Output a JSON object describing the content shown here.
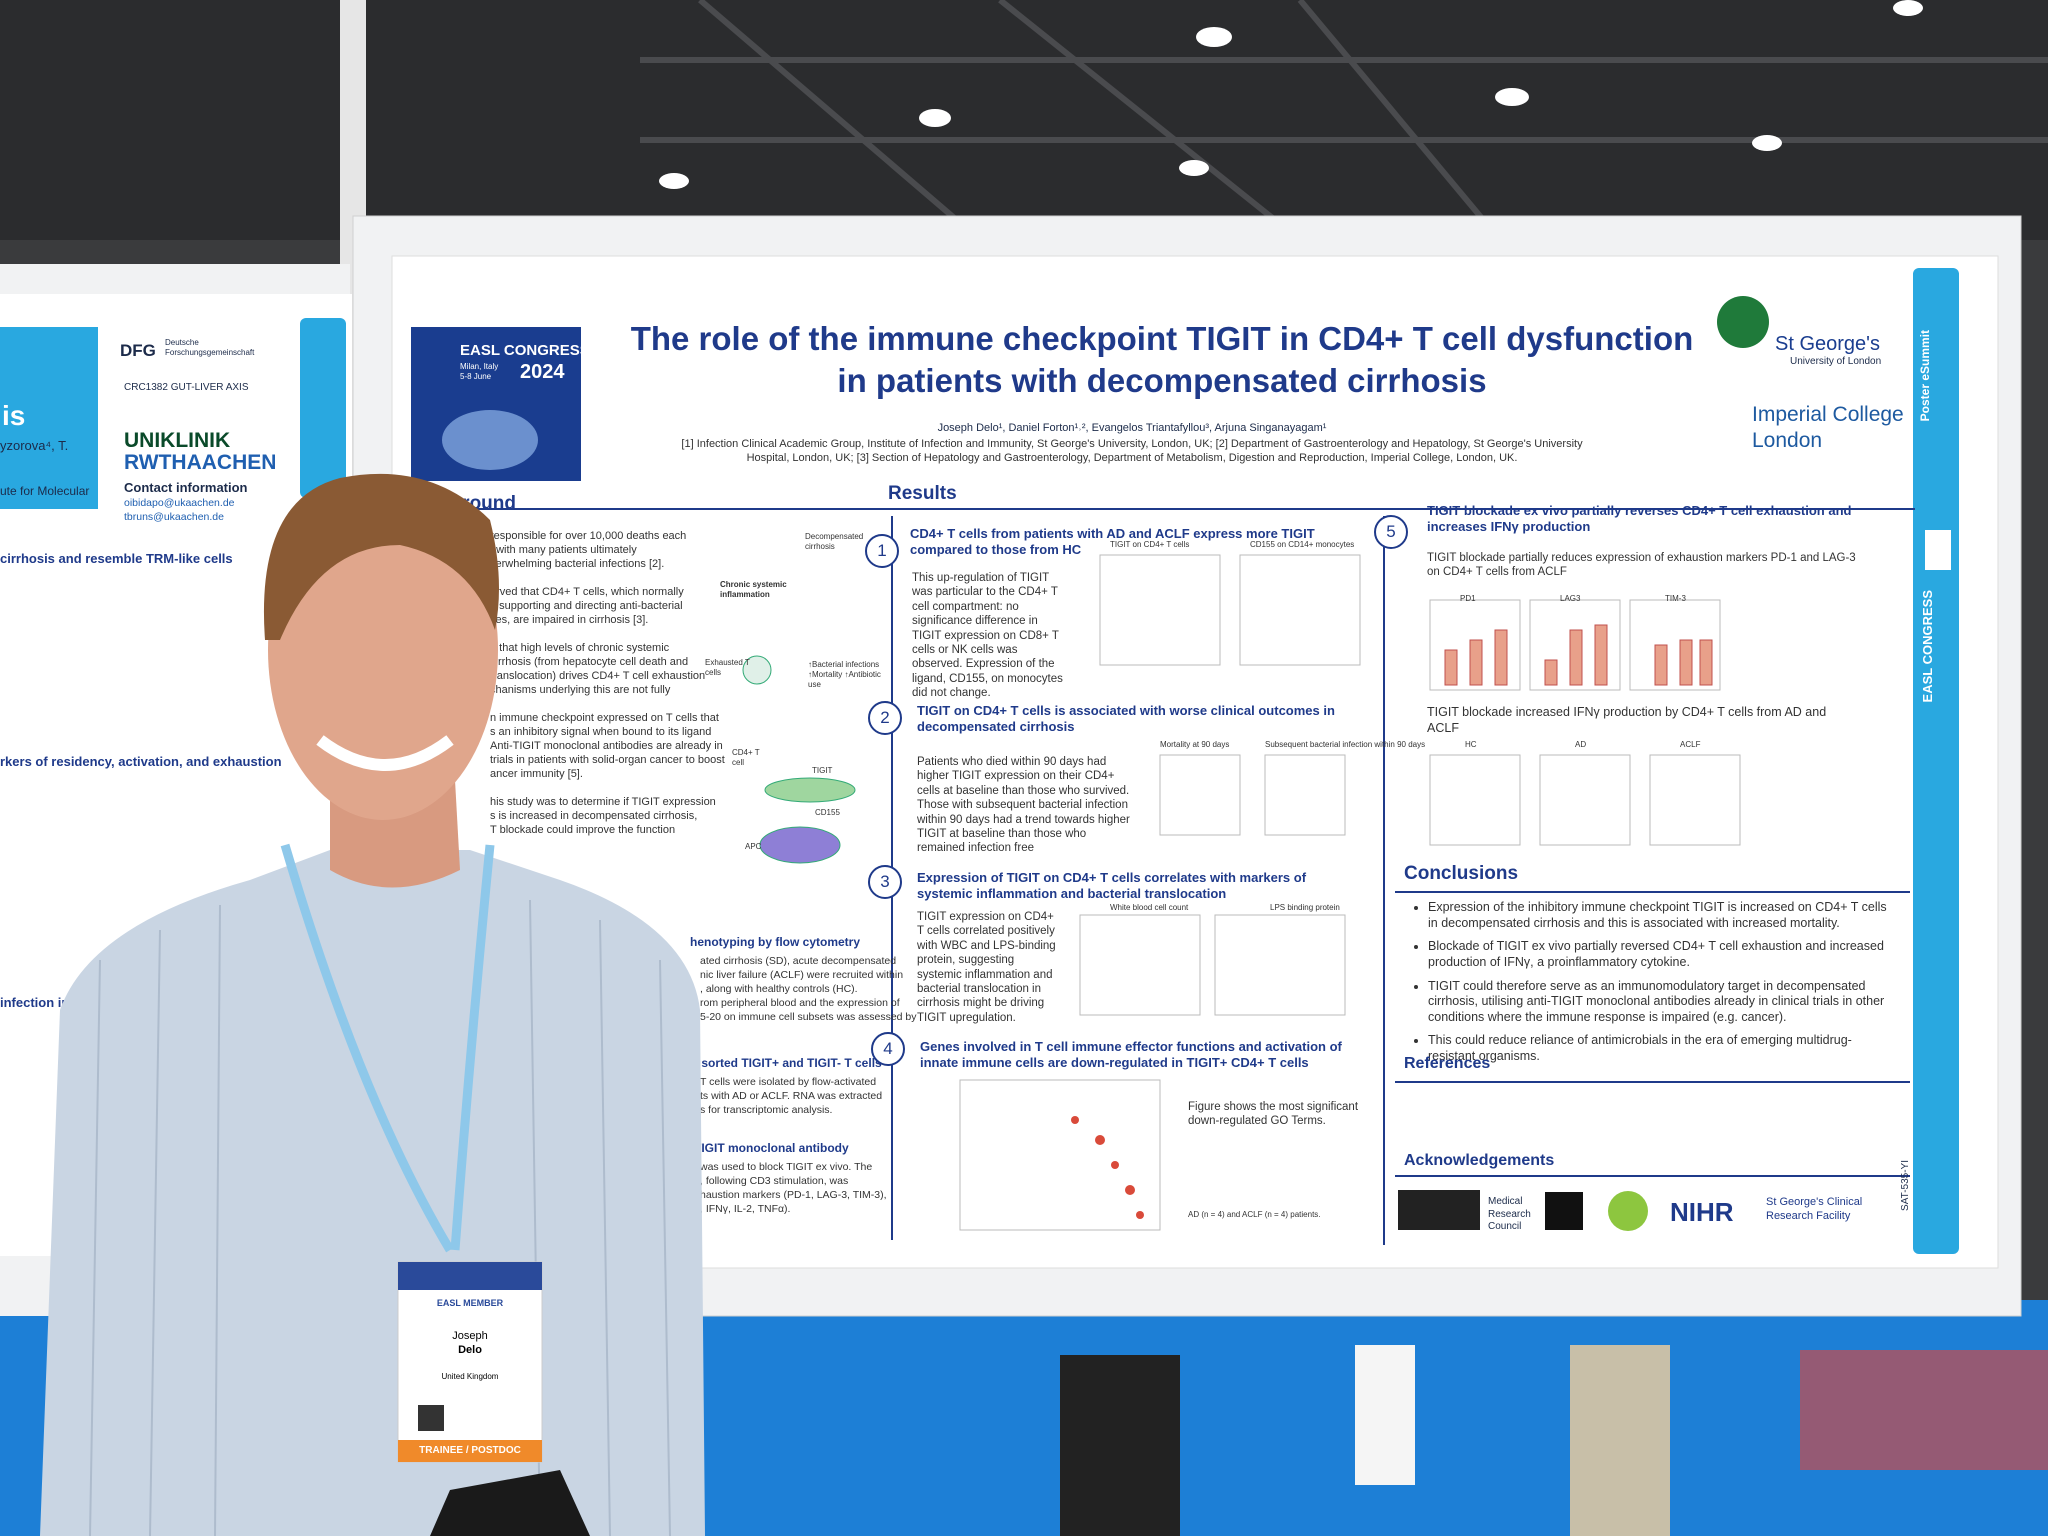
{
  "left_poster": {
    "title_fragment": "is",
    "authors_fragment": "yzorova⁴, T.",
    "institute_fragment": "ute for Molecular",
    "dfg": "DFG",
    "dfg_name": "Deutsche Forschungsgemeinschaft",
    "consortium": "CRC1382 GUT-LIVER AXIS",
    "hospital": [
      "UNIKLINIK",
      "RWTHAACHEN"
    ],
    "contact_heading": "Contact information",
    "emails": [
      "oibidapo@ukaachen.de",
      "tbruns@ukaachen.de"
    ],
    "headings": [
      "cirrhosis and resemble TRM-like cells",
      "rkers of residency, activation, and exhaustion",
      "infection impri"
    ]
  },
  "poster": {
    "congress": {
      "name": "EASL CONGRESS",
      "place": "Milan, Italy",
      "dates": "5-8 June",
      "year": "2024"
    },
    "title": [
      "The role of the immune checkpoint TIGIT in CD4+ T cell dysfunction",
      "in patients with decompensated cirrhosis"
    ],
    "logos": {
      "st_georges": "St George's",
      "st_georges_sub": "University of London",
      "imperial": "Imperial College London"
    },
    "authors": "Joseph Delo¹, Daniel Forton¹˒², Evangelos Triantafyllou³, Arjuna Singanayagam¹",
    "affiliations": "[1] Infection Clinical Academic Group, Institute of Infection and Immunity, St George's University, London, UK; [2] Department of Gastroenterology and Hepatology, St George's University Hospital, London, UK; [3] Section of Hepatology and Gastroenterology, Department of Metabolism, Digestion and Reproduction, Imperial College, London, UK.",
    "background": {
      "heading": "kground",
      "lines": [
        "responsible for over 10,000 deaths each",
        ", with many patients ultimately",
        "verwhelming bacterial infections [2].",
        "",
        "erved that CD4+ T cells, which normally",
        "n supporting and directing anti-bacterial",
        "ses, are impaired in cirrhosis [3].",
        "",
        "d that high levels of chronic systemic",
        "cirrhosis (from hepatocyte cell death and",
        "translocation) drives CD4+ T cell exhaustion",
        "chanisms underlying this are not fully",
        "",
        "n immune checkpoint expressed on T cells that",
        "s an inhibitory signal when bound to its ligand",
        "Anti-TIGIT monoclonal antibodies are already in",
        "trials in patients with solid-organ cancer to boost",
        "ancer immunity [5].",
        "",
        "his study was to determine if TIGIT expression",
        "s is increased in decompensated cirrhosis,",
        "T blockade could improve the function"
      ]
    },
    "diagram": [
      "Decompensated cirrhosis",
      "Chronic systemic inflammation",
      "Exhausted T cells",
      "↑Bacterial infections ↑Mortality ↑Antibiotic use",
      "CD4+ T cell",
      "TIGIT",
      "CD155",
      "APC"
    ],
    "methods": [
      {
        "heading": "henotyping by flow cytometry",
        "lines": [
          "ated cirrhosis (SD), acute decompensated",
          "nic liver failure (ACLF) were recruited within",
          ", along with healthy controls (HC).",
          "rom peripheral blood and the expression of",
          "5-20 on immune cell subsets was assessed by"
        ]
      },
      {
        "heading": "S sorted TIGIT+ and TIGIT- T cells",
        "lines": [
          "T cells were isolated by flow-activated",
          "ts with AD or ACLF. RNA was extracted",
          "s for transcriptomic analysis."
        ]
      },
      {
        "heading": "-TIGIT monoclonal antibody",
        "lines": [
          "was used to block TIGIT ex vivo. The",
          ", following CD3 stimulation, was",
          "haustion markers (PD-1, LAG-3, TIM-3),",
          ", IFNγ, IL-2, TNFα)."
        ]
      }
    ],
    "results_heading": "Results",
    "results": [
      {
        "number": "1",
        "heading": "CD4+ T cells from patients with AD and ACLF express more TIGIT compared to those from HC",
        "text": "This up-regulation of TIGIT was particular to the CD4+ T cell compartment: no significance difference in TIGIT expression on CD8+ T cells or NK cells was observed. Expression of the ligand, CD155, on monocytes did not change.",
        "panels": [
          "TIGIT on CD4+ T cells",
          "CD155 on CD14+ monocytes"
        ]
      },
      {
        "number": "2",
        "heading": "TIGIT on CD4+ T cells is associated with worse clinical outcomes in decompensated cirrhosis",
        "text": "Patients who died within 90 days had higher TIGIT expression on their CD4+ cells at baseline than those who survived. Those with subsequent bacterial infection within 90 days had a trend towards higher TIGIT at baseline than those who remained infection free",
        "panels": [
          "Mortality at 90 days",
          "Subsequent bacterial infection within 90 days"
        ]
      },
      {
        "number": "3",
        "heading": "Expression of TIGIT on CD4+ T cells correlates with markers of systemic inflammation and bacterial translocation",
        "text": "TIGIT expression on CD4+ T cells correlated positively with WBC and LPS-binding protein, suggesting systemic inflammation and bacterial translocation in cirrhosis might be driving TIGIT upregulation.",
        "panels": [
          "White blood cell count",
          "LPS binding protein"
        ]
      },
      {
        "number": "4",
        "heading": "Genes involved in T cell immune effector functions and activation of innate immune cells are down-regulated in TIGIT+ CD4+ T cells",
        "text": "Figure shows the most significant down-regulated GO Terms.",
        "panels": [
          "AD (n = 4) and ACLF (n = 4) patients."
        ]
      },
      {
        "number": "5",
        "heading": "TIGIT blockade ex vivo partially reverses CD4+ T cell exhaustion and increases IFNγ production",
        "text": "TIGIT blockade partially reduces expression of exhaustion markers PD-1 and LAG-3 on CD4+ T cells from ACLF",
        "panels": [
          "PD1",
          "LAG3",
          "TIM-3"
        ]
      }
    ],
    "ifng_text": "TIGIT blockade increased IFNγ production by CD4+ T cells from AD and ACLF",
    "ifng_panels": [
      "HC",
      "AD",
      "ACLF"
    ],
    "conclusions": {
      "heading": "Conclusions",
      "items": [
        "Expression of the inhibitory immune checkpoint TIGIT is increased on CD4+ T cells in decompensated cirrhosis and this is associated with increased mortality.",
        "Blockade of TIGIT ex vivo partially reversed CD4+ T cell exhaustion and increased production of IFNγ, a proinflammatory cytokine.",
        "TIGIT could therefore serve as an immunomodulatory target in decompensated cirrhosis, utilising anti-TIGIT monoclonal antibodies already in clinical trials in other conditions where the immune response is impaired (e.g. cancer).",
        "This could reduce reliance of antimicrobials in the era of emerging multidrug-resistant organisms."
      ]
    },
    "references_heading": "References",
    "acknowledgements": {
      "heading": "Acknowledgements",
      "funders": [
        "Medical Research Council",
        "NIHR",
        "St George's Clinical Research Facility"
      ]
    },
    "side_banner": [
      "Poster eSummit",
      "EASL CONGRESS"
    ],
    "poster_id": "SAT-535-YI"
  },
  "badge": {
    "type": "EASL MEMBER",
    "first_name": "Joseph",
    "last_name": "Delo",
    "country": "United Kingdom",
    "role": "TRAINEE / POSTDOC"
  }
}
